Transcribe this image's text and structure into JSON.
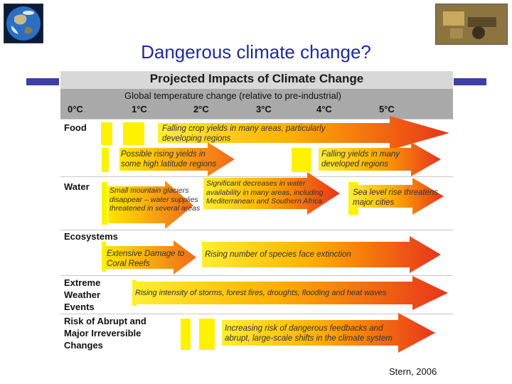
{
  "slide_title": "Dangerous climate change?",
  "credit": "Stern, 2006",
  "chart": {
    "title": "Projected Impacts of Climate Change",
    "temperature_caption": "Global temperature change (relative to pre-industrial)",
    "ticks": [
      "0°C",
      "1°C",
      "2°C",
      "3°C",
      "4°C",
      "5°C"
    ],
    "rows": [
      {
        "label": "Food"
      },
      {
        "label": "Water"
      },
      {
        "label": "Ecosystems"
      },
      {
        "label": "Extreme Weather Events"
      },
      {
        "label": "Risk of Abrupt and Major Irreversible Changes"
      }
    ],
    "impacts": {
      "food_1": "Falling crop yields in many areas, particularly developing regions",
      "food_2": "Possible rising yields in some high latitude regions",
      "food_3": "Falling yields in many developed regions",
      "water_1": "Small mountain glaciers disappear – water supplies threatened in several areas",
      "water_2": "Significant decreases in water availability in many areas, including Mediterranean and Southern Africa",
      "water_3": "Sea level rise threatens major cities",
      "eco_1": "Extensive Damage to Coral Reefs",
      "eco_2": "Rising number of species face extinction",
      "weather_1": "Rising intensity of storms, forest fires, droughts, flooding and heat waves",
      "abrupt_1": "Increasing risk of dangerous feedbacks and abrupt, large-scale shifts in the climate system"
    }
  },
  "colors": {
    "title": "#1f2a9c",
    "accent_bar": "#3d3fa3",
    "arrow_start": "#ffe600",
    "arrow_end": "#e8341c"
  }
}
